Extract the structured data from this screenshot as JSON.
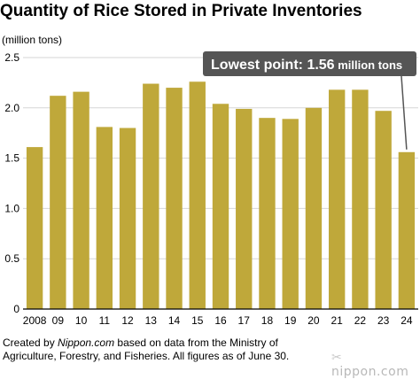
{
  "header": {
    "title": "Quantity of Rice Stored in Private Inventories",
    "unit": "(million tons)"
  },
  "callout": {
    "prefix": "Lowest point: ",
    "value": "1.56",
    "suffix": " million tons",
    "bg_color": "#555555",
    "text_color": "#ffffff"
  },
  "footer": {
    "line1_pre": "Created by ",
    "line1_site": "Nippon.com",
    "line1_post": " based on data from the Ministry of",
    "line2": "Agriculture, Forestry, and Fisheries. All figures as of June 30."
  },
  "logo": {
    "mark": "✂",
    "text": "nippon.com"
  },
  "colors": {
    "bar": "#bfa83a",
    "grid": "#d6d6d6",
    "axis": "#000000"
  },
  "chart_data": {
    "type": "bar",
    "title": "Quantity of Rice Stored in Private Inventories",
    "ylabel": "(million tons)",
    "xlabel": "",
    "categories": [
      "2008",
      "09",
      "10",
      "11",
      "12",
      "13",
      "14",
      "15",
      "16",
      "17",
      "18",
      "19",
      "20",
      "21",
      "22",
      "23",
      "24"
    ],
    "values": [
      1.61,
      2.12,
      2.16,
      1.81,
      1.8,
      2.24,
      2.2,
      2.26,
      2.04,
      1.99,
      1.9,
      1.89,
      2.0,
      2.18,
      2.18,
      1.97,
      1.56
    ],
    "ylim": [
      0,
      2.5
    ],
    "yticks": [
      "0",
      "0.5",
      "1.0",
      "1.5",
      "2.0",
      "2.5"
    ],
    "grid": true,
    "annotation": "Lowest point: 1.56 million tons"
  }
}
